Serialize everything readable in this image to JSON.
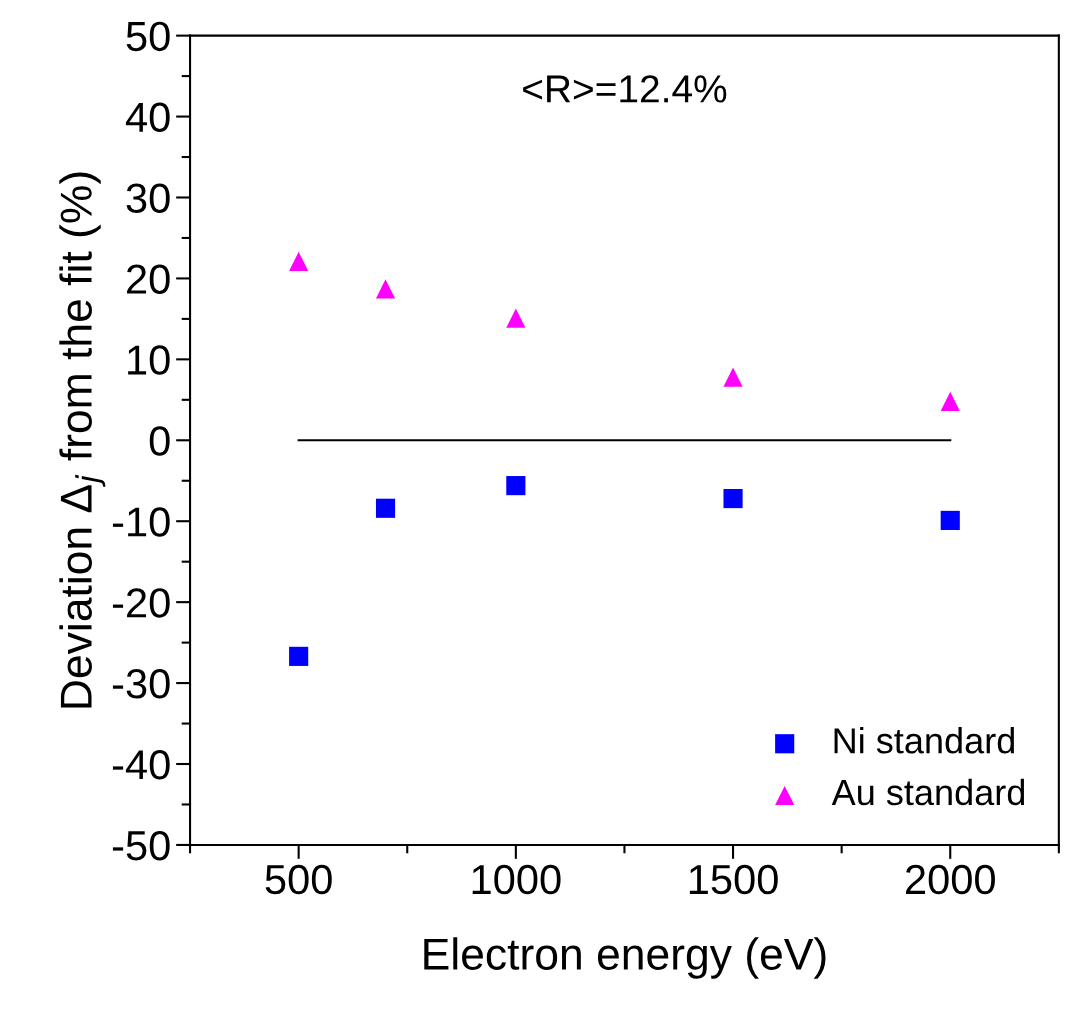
{
  "chart_data": {
    "type": "scatter",
    "xlabel": "Electron energy (eV)",
    "ylabel": "Deviation Δ$_{j}$ from the fit (%)",
    "annotations": [
      "<R>=12.4%"
    ],
    "series": [
      {
        "name": "Ni standard",
        "color": "#0000ff",
        "marker": "square",
        "x": [
          500,
          700,
          1000,
          1500,
          2000
        ],
        "values": [
          -26.7,
          -8.4,
          -5.6,
          -7.2,
          -9.9
        ]
      },
      {
        "name": "Au standard",
        "color": "#ff00ff",
        "marker": "triangle",
        "x": [
          500,
          700,
          1000,
          1500,
          2000
        ],
        "values": [
          22.1,
          18.7,
          15.1,
          7.8,
          4.8
        ]
      },
      {
        "type": "line",
        "color": "#000000",
        "marker": "none",
        "x": [
          500,
          2000
        ],
        "values": [
          0,
          0
        ]
      }
    ],
    "xlim": [
      250,
      2250
    ],
    "xticks": [
      {
        "value": 250,
        "label": null
      },
      500,
      {
        "value": 750,
        "label": null
      },
      1000,
      {
        "value": 1250,
        "label": null
      },
      1500,
      {
        "value": 1750,
        "label": null
      },
      2000,
      {
        "value": 2250,
        "label": null
      }
    ],
    "ylim": [
      -50,
      50
    ],
    "yticks": [
      -50,
      {
        "value": -45,
        "label": null
      },
      -40,
      {
        "value": -35,
        "label": null
      },
      -30,
      {
        "value": -25,
        "label": null
      },
      -20,
      {
        "value": -15,
        "label": null
      },
      -10,
      {
        "value": -5,
        "label": null
      },
      0,
      {
        "value": 5,
        "label": null
      },
      10,
      {
        "value": 15,
        "label": null
      },
      20,
      {
        "value": 25,
        "label": null
      },
      30,
      {
        "value": 35,
        "label": null
      },
      40,
      {
        "value": 45,
        "label": null
      },
      50
    ],
    "grid": false,
    "legend": "bottom right"
  }
}
